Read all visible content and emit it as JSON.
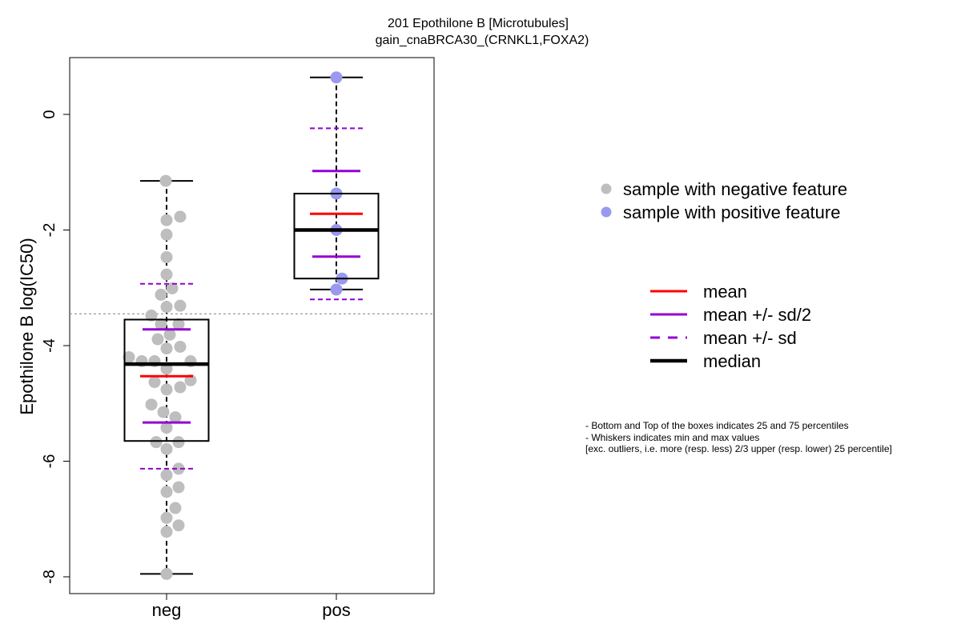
{
  "chart_data": {
    "type": "box-strip",
    "title": "201 Epothilone B [Microtubules]",
    "subtitle": "gain_cnaBRCA30_(CRNKL1,FOXA2)",
    "ylabel": "Epothilone B log(IC50)",
    "xlabel": "",
    "ylim": [
      -8.3,
      1.0
    ],
    "yticks": [
      0,
      -2,
      -4,
      -6,
      -8
    ],
    "ytick_labels": [
      "0",
      "-2",
      "-4",
      "-6",
      "-8"
    ],
    "categories": [
      "neg",
      "pos"
    ],
    "reference_line": -3.45,
    "groups": [
      {
        "name": "neg",
        "point_color": "#bebebe",
        "whisker_min": -7.95,
        "q1": -5.65,
        "median": -4.32,
        "q3": -3.55,
        "whisker_max": -1.15,
        "mean": -4.53,
        "mean_plus_half_sd": -3.72,
        "mean_minus_half_sd": -5.33,
        "mean_plus_sd": -2.93,
        "mean_minus_sd": -6.13,
        "points": [
          {
            "x": -0.01,
            "y": -1.15
          },
          {
            "x": 0.17,
            "y": -1.77
          },
          {
            "x": 0.0,
            "y": -1.83
          },
          {
            "x": 0.0,
            "y": -2.08
          },
          {
            "x": 0.0,
            "y": -2.47
          },
          {
            "x": 0.0,
            "y": -2.77
          },
          {
            "x": 0.07,
            "y": -3.01
          },
          {
            "x": -0.07,
            "y": -3.12
          },
          {
            "x": 0.17,
            "y": -3.31
          },
          {
            "x": 0.0,
            "y": -3.33
          },
          {
            "x": -0.19,
            "y": -3.48
          },
          {
            "x": -0.07,
            "y": -3.63
          },
          {
            "x": 0.15,
            "y": -3.63
          },
          {
            "x": 0.04,
            "y": -3.81
          },
          {
            "x": -0.11,
            "y": -3.89
          },
          {
            "x": 0.0,
            "y": -4.05
          },
          {
            "x": 0.17,
            "y": -4.02
          },
          {
            "x": -0.47,
            "y": -4.2
          },
          {
            "x": -0.31,
            "y": -4.27
          },
          {
            "x": -0.15,
            "y": -4.27
          },
          {
            "x": 0.3,
            "y": -4.27
          },
          {
            "x": 0.0,
            "y": -4.4
          },
          {
            "x": -0.15,
            "y": -4.63
          },
          {
            "x": 0.3,
            "y": -4.6
          },
          {
            "x": 0.17,
            "y": -4.72
          },
          {
            "x": 0.0,
            "y": -4.76
          },
          {
            "x": -0.19,
            "y": -5.02
          },
          {
            "x": -0.04,
            "y": -5.15
          },
          {
            "x": 0.11,
            "y": -5.24
          },
          {
            "x": 0.0,
            "y": -5.42
          },
          {
            "x": -0.13,
            "y": -5.67
          },
          {
            "x": 0.15,
            "y": -5.67
          },
          {
            "x": 0.0,
            "y": -5.79
          },
          {
            "x": 0.15,
            "y": -6.13
          },
          {
            "x": 0.0,
            "y": -6.24
          },
          {
            "x": 0.15,
            "y": -6.45
          },
          {
            "x": 0.0,
            "y": -6.53
          },
          {
            "x": 0.11,
            "y": -6.81
          },
          {
            "x": 0.0,
            "y": -6.98
          },
          {
            "x": 0.15,
            "y": -7.11
          },
          {
            "x": 0.0,
            "y": -7.22
          },
          {
            "x": 0.0,
            "y": -7.95
          }
        ]
      },
      {
        "name": "pos",
        "point_color": "#9999ee",
        "whisker_min": -3.03,
        "q1": -2.84,
        "median": -2.0,
        "q3": -1.37,
        "whisker_max": 0.64,
        "mean": -1.72,
        "mean_plus_half_sd": -0.98,
        "mean_minus_half_sd": -2.46,
        "mean_plus_sd": -0.24,
        "mean_minus_sd": -3.2,
        "points": [
          {
            "x": 0.0,
            "y": 0.64
          },
          {
            "x": 0.0,
            "y": -1.37
          },
          {
            "x": 0.0,
            "y": -2.0
          },
          {
            "x": 0.07,
            "y": -2.84
          },
          {
            "x": 0.0,
            "y": -3.03
          }
        ]
      }
    ],
    "colors": {
      "mean": "#ff0000",
      "sd": "#9400d3",
      "median": "#000000",
      "box": "#000000",
      "reference": "#808080"
    },
    "legend_points": [
      {
        "label": "sample with negative feature",
        "color": "#bebebe"
      },
      {
        "label": "sample with positive feature",
        "color": "#9999ee"
      }
    ],
    "legend_lines": [
      {
        "label": "mean",
        "color": "#ff0000",
        "style": "solid",
        "weight": "normal"
      },
      {
        "label": "mean +/- sd/2",
        "color": "#9400d3",
        "style": "solid",
        "weight": "normal"
      },
      {
        "label": "mean +/- sd",
        "color": "#9400d3",
        "style": "dashed",
        "weight": "normal"
      },
      {
        "label": "median",
        "color": "#000000",
        "style": "solid",
        "weight": "bold"
      }
    ],
    "notes": [
      "- Bottom and Top of the boxes indicates 25 and 75 percentiles",
      "- Whiskers indicates min and max values",
      "[exc. outliers, i.e. more (resp. less) 2/3 upper (resp. lower) 25 percentile]"
    ]
  }
}
